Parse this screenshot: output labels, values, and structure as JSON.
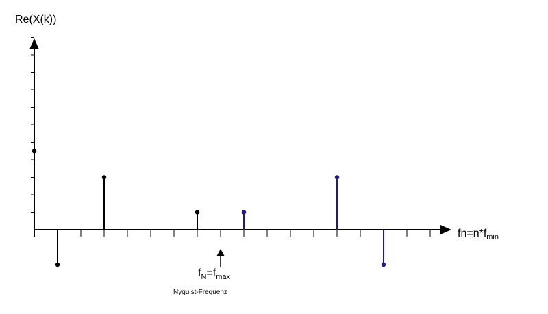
{
  "chart_data": {
    "type": "stem",
    "title": "",
    "ylabel": "Re(X(k))",
    "xlabel": {
      "main": "fn=n*f",
      "sub": "min"
    },
    "x_ticks": 17,
    "y_ticks": 11,
    "xlim": [
      0,
      18
    ],
    "ylim": [
      -2,
      11
    ],
    "grid": false,
    "legend": "none",
    "stems": [
      {
        "x": 0,
        "y": 4.5,
        "color": "#000000"
      },
      {
        "x": 1,
        "y": -2,
        "color": "#000000"
      },
      {
        "x": 3,
        "y": 3,
        "color": "#000000"
      },
      {
        "x": 7,
        "y": 1,
        "color": "#000000"
      },
      {
        "x": 9,
        "y": 1,
        "color": "#1a1a8a"
      },
      {
        "x": 13,
        "y": 3,
        "color": "#1a1a8a"
      },
      {
        "x": 15,
        "y": -2,
        "color": "#1a1a8a"
      }
    ],
    "nyquist": {
      "x": 8,
      "label_main": "f",
      "label_sub1": "N",
      "label_mid": "=f",
      "label_sub2": "max",
      "note": "Nyquist-Frequenz"
    }
  }
}
